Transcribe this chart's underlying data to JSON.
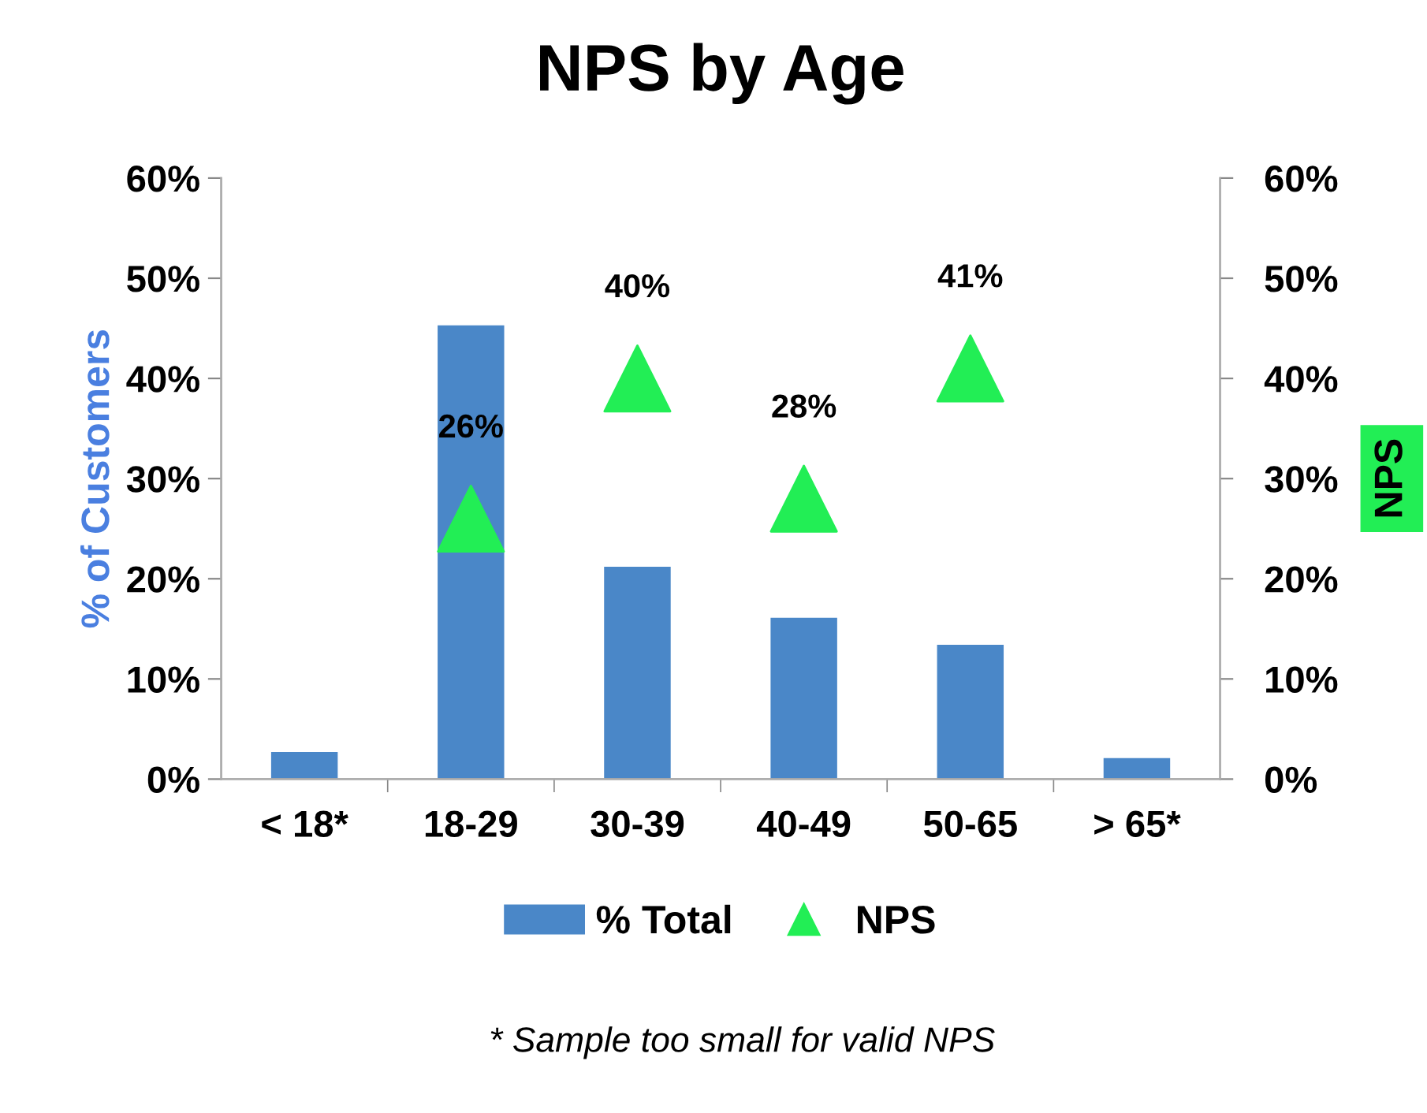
{
  "chart_data": {
    "type": "bar",
    "title": "NPS by Age",
    "ylabel": "% of Customers",
    "y2label": "NPS",
    "categories": [
      "< 18*",
      "18-29",
      "30-39",
      "40-49",
      "50-65",
      "> 65*"
    ],
    "series": [
      {
        "name": "% Total",
        "color": "#4a87c8",
        "values": [
          2.7,
          45.3,
          21.2,
          16.1,
          13.4,
          2.1
        ]
      },
      {
        "name": "NPS",
        "type": "scatter",
        "axis": "y2",
        "color": "#22ee55",
        "values": [
          null,
          26,
          40,
          28,
          41,
          null
        ],
        "value_labels": [
          null,
          "26%",
          "40%",
          "28%",
          "41%",
          null
        ]
      }
    ],
    "marker": "triangle",
    "ylim": [
      0,
      60
    ],
    "yticks": [
      {
        "value": 0,
        "label": "0%"
      },
      {
        "value": 10,
        "label": "10%"
      },
      {
        "value": 20,
        "label": "20%"
      },
      {
        "value": 30,
        "label": "30%"
      },
      {
        "value": 40,
        "label": "40%"
      },
      {
        "value": 50,
        "label": "50%"
      },
      {
        "value": 60,
        "label": "60%"
      }
    ],
    "y2lim": [
      0,
      60
    ],
    "y2ticks": [
      {
        "value": 0,
        "label": "0%"
      },
      {
        "value": 10,
        "label": "10%"
      },
      {
        "value": 20,
        "label": "20%"
      },
      {
        "value": 30,
        "label": "30%"
      },
      {
        "value": 40,
        "label": "40%"
      },
      {
        "value": 50,
        "label": "50%"
      },
      {
        "value": 60,
        "label": "60%"
      }
    ],
    "legend": "bottom",
    "annotations": [
      "* Sample too small for valid NPS"
    ]
  }
}
